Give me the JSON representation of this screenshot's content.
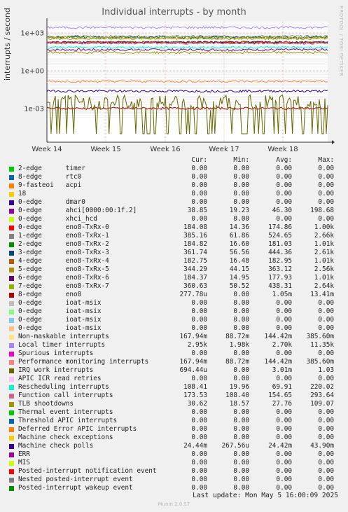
{
  "chart_data": {
    "type": "line",
    "title": "Individual interrupts - by month",
    "ylabel": "interrupts / second",
    "yscale": "log",
    "yticks": [
      "1e+03",
      "1e+00",
      "1e-03"
    ],
    "xticks": [
      "Week 14",
      "Week 15",
      "Week 16",
      "Week 17",
      "Week 18"
    ],
    "watermark": "RRDTOOL / TOBI OETIKER",
    "columns": [
      "Cur:",
      "Min:",
      "Avg:",
      "Max:"
    ],
    "series": [
      {
        "name": "2-edge      timer",
        "color": "#00cc00",
        "cur": "0.00",
        "min": "0.00",
        "avg": "0.00",
        "max": "0.00"
      },
      {
        "name": "8-edge      rtc0",
        "color": "#0066b3",
        "cur": "0.00",
        "min": "0.00",
        "avg": "0.00",
        "max": "0.00"
      },
      {
        "name": "9-fasteoi   acpi",
        "color": "#ff8000",
        "cur": "0.00",
        "min": "0.00",
        "avg": "0.00",
        "max": "0.00"
      },
      {
        "name": "18",
        "color": "#ffcc00",
        "cur": "0.00",
        "min": "0.00",
        "avg": "0.00",
        "max": "0.00"
      },
      {
        "name": "0-edge      dmar0",
        "color": "#330099",
        "cur": "0.00",
        "min": "0.00",
        "avg": "0.00",
        "max": "0.00"
      },
      {
        "name": "0-edge      ahci[0000:00:1f.2]",
        "color": "#990099",
        "cur": "38.85",
        "min": "19.23",
        "avg": "46.30",
        "max": "198.68"
      },
      {
        "name": "0-edge      xhci_hcd",
        "color": "#ccff00",
        "cur": "0.00",
        "min": "0.00",
        "avg": "0.00",
        "max": "0.00"
      },
      {
        "name": "0-edge      eno8-TxRx-0",
        "color": "#ff0000",
        "cur": "184.08",
        "min": "14.36",
        "avg": "174.86",
        "max": "1.00k"
      },
      {
        "name": "1-edge      eno8-TxRx-1",
        "color": "#808080",
        "cur": "385.16",
        "min": "61.86",
        "avg": "524.65",
        "max": "2.66k"
      },
      {
        "name": "2-edge      eno8-TxRx-2",
        "color": "#008f00",
        "cur": "184.82",
        "min": "16.60",
        "avg": "181.03",
        "max": "1.01k"
      },
      {
        "name": "3-edge      eno8-TxRx-3",
        "color": "#00487d",
        "cur": "361.74",
        "min": "56.56",
        "avg": "444.36",
        "max": "2.61k"
      },
      {
        "name": "4-edge      eno8-TxRx-4",
        "color": "#b35a00",
        "cur": "182.75",
        "min": "16.48",
        "avg": "182.95",
        "max": "1.01k"
      },
      {
        "name": "5-edge      eno8-TxRx-5",
        "color": "#b38f00",
        "cur": "344.29",
        "min": "44.15",
        "avg": "363.12",
        "max": "2.56k"
      },
      {
        "name": "6-edge      eno8-TxRx-6",
        "color": "#6b006b",
        "cur": "184.37",
        "min": "14.95",
        "avg": "177.93",
        "max": "1.01k"
      },
      {
        "name": "7-edge      eno8-TxRx-7",
        "color": "#8fb300",
        "cur": "360.63",
        "min": "50.52",
        "avg": "438.31",
        "max": "2.64k"
      },
      {
        "name": "8-edge      eno8",
        "color": "#b30000",
        "cur": "277.78u",
        "min": "0.00",
        "avg": "1.05m",
        "max": "13.41m"
      },
      {
        "name": "0-edge      ioat-msix",
        "color": "#bebebe",
        "cur": "0.00",
        "min": "0.00",
        "avg": "0.00",
        "max": "0.00"
      },
      {
        "name": "0-edge      ioat-msix",
        "color": "#80ff80",
        "cur": "0.00",
        "min": "0.00",
        "avg": "0.00",
        "max": "0.00"
      },
      {
        "name": "0-edge      ioat-msix",
        "color": "#80c9ff",
        "cur": "0.00",
        "min": "0.00",
        "avg": "0.00",
        "max": "0.00"
      },
      {
        "name": "0-edge      ioat-msix",
        "color": "#ffc080",
        "cur": "0.00",
        "min": "0.00",
        "avg": "0.00",
        "max": "0.00"
      },
      {
        "name": "Non-maskable interrupts",
        "color": "#ffe680",
        "cur": "167.94m",
        "min": "88.72m",
        "avg": "144.42m",
        "max": "385.60m"
      },
      {
        "name": "Local timer interrupts",
        "color": "#aa80ff",
        "cur": "2.95k",
        "min": "1.98k",
        "avg": "2.70k",
        "max": "11.35k"
      },
      {
        "name": "Spurious interrupts",
        "color": "#ee00cc",
        "cur": "0.00",
        "min": "0.00",
        "avg": "0.00",
        "max": "0.00"
      },
      {
        "name": "Performance monitoring interrupts",
        "color": "#ff8080",
        "cur": "167.94m",
        "min": "88.72m",
        "avg": "144.42m",
        "max": "385.60m"
      },
      {
        "name": "IRQ work interrupts",
        "color": "#666600",
        "cur": "694.44u",
        "min": "0.00",
        "avg": "3.01m",
        "max": "1.03"
      },
      {
        "name": "APIC ICR read retries",
        "color": "#ffbfff",
        "cur": "0.00",
        "min": "0.00",
        "avg": "0.00",
        "max": "0.00"
      },
      {
        "name": "Rescheduling interrupts",
        "color": "#00ffcc",
        "cur": "108.41",
        "min": "19.96",
        "avg": "69.91",
        "max": "220.02"
      },
      {
        "name": "Function call interrupts",
        "color": "#cc6699",
        "cur": "173.53",
        "min": "108.40",
        "avg": "154.65",
        "max": "293.64"
      },
      {
        "name": "TLB shootdowns",
        "color": "#999900",
        "cur": "30.62",
        "min": "18.57",
        "avg": "27.76",
        "max": "109.07"
      },
      {
        "name": "Thermal event interrupts",
        "color": "#00cc00",
        "cur": "0.00",
        "min": "0.00",
        "avg": "0.00",
        "max": "0.00"
      },
      {
        "name": "Threshold APIC interrupts",
        "color": "#0066b3",
        "cur": "0.00",
        "min": "0.00",
        "avg": "0.00",
        "max": "0.00"
      },
      {
        "name": "Deferred Error APIC interrupts",
        "color": "#ff8000",
        "cur": "0.00",
        "min": "0.00",
        "avg": "0.00",
        "max": "0.00"
      },
      {
        "name": "Machine check exceptions",
        "color": "#ffcc00",
        "cur": "0.00",
        "min": "0.00",
        "avg": "0.00",
        "max": "0.00"
      },
      {
        "name": "Machine check polls",
        "color": "#330099",
        "cur": "24.44m",
        "min": "267.56u",
        "avg": "24.42m",
        "max": "43.90m"
      },
      {
        "name": "ERR",
        "color": "#990099",
        "cur": "0.00",
        "min": "0.00",
        "avg": "0.00",
        "max": "0.00"
      },
      {
        "name": "MIS",
        "color": "#ccff00",
        "cur": "0.00",
        "min": "0.00",
        "avg": "0.00",
        "max": "0.00"
      },
      {
        "name": "Posted-interrupt notification event",
        "color": "#ff0000",
        "cur": "0.00",
        "min": "0.00",
        "avg": "0.00",
        "max": "0.00"
      },
      {
        "name": "Nested posted-interrupt event",
        "color": "#808080",
        "cur": "0.00",
        "min": "0.00",
        "avg": "0.00",
        "max": "0.00"
      },
      {
        "name": "Posted-interrupt wakeup event",
        "color": "#008f00",
        "cur": "0.00",
        "min": "0.00",
        "avg": "0.00",
        "max": "0.00"
      }
    ]
  },
  "footer": {
    "last_update": "Last update: Mon May  5 16:00:09 2025",
    "munin": "Munin 2.0.57"
  }
}
